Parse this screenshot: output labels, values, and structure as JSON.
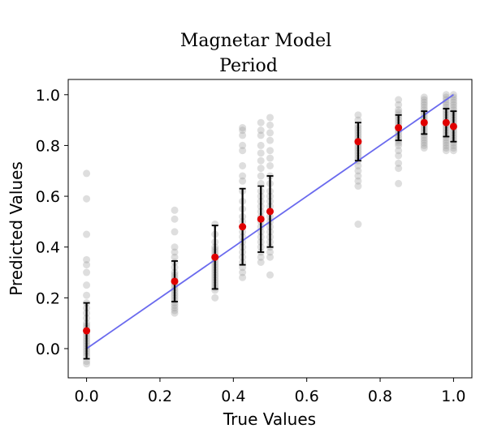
{
  "chart_data": {
    "type": "scatter",
    "title": [
      "Magnetar Model",
      "Period"
    ],
    "xlabel": "True Values",
    "ylabel": "Predicted Values",
    "xlim": [
      -0.05,
      1.05
    ],
    "ylim": [
      -0.115,
      1.06
    ],
    "xticks": [
      0.0,
      0.2,
      0.4,
      0.6,
      0.8,
      1.0
    ],
    "xtick_labels": [
      "0.0",
      "0.2",
      "0.4",
      "0.6",
      "0.8",
      "1.0"
    ],
    "yticks": [
      0.0,
      0.2,
      0.4,
      0.6,
      0.8,
      1.0
    ],
    "ytick_labels": [
      "0.0",
      "0.2",
      "0.4",
      "0.6",
      "0.8",
      "1.0"
    ],
    "grid": false,
    "colors": {
      "scatter": "#999999",
      "mean": "#e00000",
      "errorbar": "#000000",
      "reference_line": "#6a6aee"
    },
    "reference_line": {
      "x": [
        0.0,
        1.0
      ],
      "y": [
        0.0,
        1.0
      ]
    },
    "mean_points": {
      "x": [
        0.0,
        0.24,
        0.35,
        0.425,
        0.475,
        0.5,
        0.74,
        0.85,
        0.92,
        0.98,
        1.0
      ],
      "y": [
        0.07,
        0.265,
        0.36,
        0.48,
        0.51,
        0.54,
        0.815,
        0.87,
        0.89,
        0.89,
        0.875
      ],
      "err": [
        0.11,
        0.08,
        0.125,
        0.15,
        0.13,
        0.14,
        0.075,
        0.05,
        0.045,
        0.055,
        0.06
      ]
    },
    "scatter_groups": [
      {
        "x": 0.0,
        "y": [
          0.69,
          0.59,
          0.45,
          0.35,
          0.33,
          0.3,
          0.25,
          0.21,
          0.18,
          0.16,
          0.14,
          0.12,
          0.1,
          0.09,
          0.08,
          0.07,
          0.06,
          0.05,
          0.04,
          0.03,
          0.02,
          0.01,
          0.0,
          -0.01,
          -0.02,
          -0.03,
          -0.05,
          -0.06
        ]
      },
      {
        "x": 0.24,
        "y": [
          0.545,
          0.51,
          0.46,
          0.4,
          0.38,
          0.36,
          0.34,
          0.32,
          0.3,
          0.29,
          0.28,
          0.27,
          0.26,
          0.25,
          0.24,
          0.23,
          0.22,
          0.21,
          0.2,
          0.19,
          0.18,
          0.17,
          0.16,
          0.15,
          0.14
        ]
      },
      {
        "x": 0.35,
        "y": [
          0.49,
          0.45,
          0.42,
          0.4,
          0.39,
          0.38,
          0.37,
          0.36,
          0.35,
          0.34,
          0.33,
          0.32,
          0.31,
          0.3,
          0.29,
          0.28,
          0.27,
          0.26,
          0.25,
          0.24,
          0.23,
          0.2
        ]
      },
      {
        "x": 0.425,
        "y": [
          0.87,
          0.86,
          0.84,
          0.8,
          0.78,
          0.72,
          0.68,
          0.66,
          0.62,
          0.58,
          0.55,
          0.52,
          0.5,
          0.48,
          0.46,
          0.44,
          0.42,
          0.4,
          0.38,
          0.36,
          0.34,
          0.32,
          0.3,
          0.28
        ]
      },
      {
        "x": 0.475,
        "y": [
          0.89,
          0.86,
          0.84,
          0.8,
          0.77,
          0.74,
          0.71,
          0.68,
          0.65,
          0.62,
          0.6,
          0.58,
          0.56,
          0.54,
          0.52,
          0.5,
          0.48,
          0.46,
          0.44,
          0.42,
          0.4,
          0.38,
          0.36,
          0.34
        ]
      },
      {
        "x": 0.5,
        "y": [
          0.91,
          0.88,
          0.85,
          0.82,
          0.78,
          0.75,
          0.72,
          0.68,
          0.65,
          0.62,
          0.6,
          0.58,
          0.56,
          0.54,
          0.52,
          0.5,
          0.48,
          0.46,
          0.44,
          0.42,
          0.4,
          0.38,
          0.36,
          0.29
        ]
      },
      {
        "x": 0.74,
        "y": [
          0.92,
          0.9,
          0.88,
          0.87,
          0.86,
          0.85,
          0.84,
          0.83,
          0.82,
          0.81,
          0.8,
          0.79,
          0.78,
          0.77,
          0.76,
          0.75,
          0.74,
          0.72,
          0.7,
          0.68,
          0.66,
          0.64,
          0.49
        ]
      },
      {
        "x": 0.85,
        "y": [
          0.98,
          0.96,
          0.94,
          0.93,
          0.92,
          0.91,
          0.9,
          0.89,
          0.88,
          0.87,
          0.86,
          0.85,
          0.84,
          0.83,
          0.82,
          0.81,
          0.8,
          0.78,
          0.76,
          0.73,
          0.71,
          0.65
        ]
      },
      {
        "x": 0.92,
        "y": [
          0.99,
          0.98,
          0.97,
          0.96,
          0.95,
          0.94,
          0.93,
          0.92,
          0.91,
          0.9,
          0.89,
          0.88,
          0.87,
          0.86,
          0.85,
          0.84,
          0.83,
          0.82,
          0.81,
          0.8,
          0.79
        ]
      },
      {
        "x": 0.98,
        "y": [
          1.0,
          0.99,
          0.98,
          0.97,
          0.96,
          0.95,
          0.94,
          0.93,
          0.92,
          0.91,
          0.9,
          0.89,
          0.88,
          0.87,
          0.86,
          0.85,
          0.84,
          0.83,
          0.82,
          0.81,
          0.8,
          0.79,
          0.78
        ]
      },
      {
        "x": 1.0,
        "y": [
          1.0,
          0.99,
          0.98,
          0.97,
          0.96,
          0.95,
          0.94,
          0.93,
          0.92,
          0.91,
          0.9,
          0.89,
          0.88,
          0.87,
          0.86,
          0.85,
          0.84,
          0.83,
          0.82,
          0.81,
          0.8,
          0.79,
          0.78
        ]
      }
    ]
  }
}
